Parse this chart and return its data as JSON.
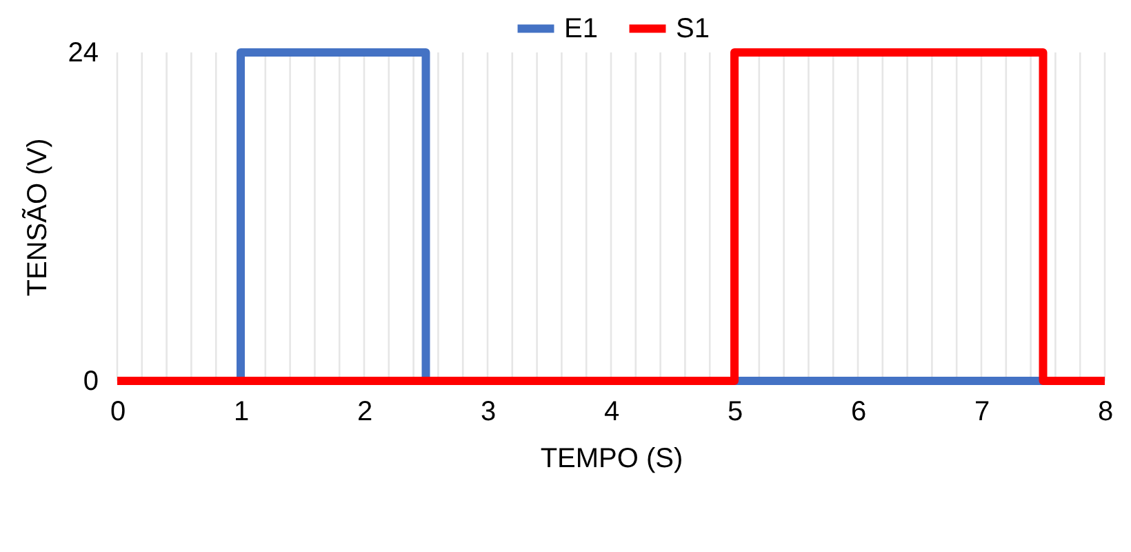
{
  "chart_data": {
    "type": "line",
    "xlabel": "TEMPO (S)",
    "ylabel": "TENSÃO (V)",
    "series": [
      {
        "name": "E1",
        "color": "#4472c4",
        "x": [
          0,
          1,
          1,
          2.5,
          2.5,
          8
        ],
        "values": [
          0,
          0,
          24,
          24,
          0,
          0
        ]
      },
      {
        "name": "S1",
        "color": "#ff0000",
        "x": [
          0,
          5,
          5,
          7.5,
          7.5,
          8
        ],
        "values": [
          0,
          0,
          24,
          24,
          0,
          0
        ]
      }
    ],
    "xlim": [
      0,
      8
    ],
    "xticks": [
      0,
      {
        "value": 0.2,
        "label": null
      },
      {
        "value": 0.4,
        "label": null
      },
      {
        "value": 0.6,
        "label": null
      },
      {
        "value": 0.8,
        "label": null
      },
      1,
      {
        "value": 1.2,
        "label": null
      },
      {
        "value": 1.4,
        "label": null
      },
      {
        "value": 1.6,
        "label": null
      },
      {
        "value": 1.8,
        "label": null
      },
      2,
      {
        "value": 2.2,
        "label": null
      },
      {
        "value": 2.4,
        "label": null
      },
      {
        "value": 2.6,
        "label": null
      },
      {
        "value": 2.8,
        "label": null
      },
      3,
      {
        "value": 3.2,
        "label": null
      },
      {
        "value": 3.4,
        "label": null
      },
      {
        "value": 3.6,
        "label": null
      },
      {
        "value": 3.8,
        "label": null
      },
      4,
      {
        "value": 4.2,
        "label": null
      },
      {
        "value": 4.4,
        "label": null
      },
      {
        "value": 4.6,
        "label": null
      },
      {
        "value": 4.8,
        "label": null
      },
      5,
      {
        "value": 5.2,
        "label": null
      },
      {
        "value": 5.4,
        "label": null
      },
      {
        "value": 5.6,
        "label": null
      },
      {
        "value": 5.8,
        "label": null
      },
      6,
      {
        "value": 6.2,
        "label": null
      },
      {
        "value": 6.4,
        "label": null
      },
      {
        "value": 6.6,
        "label": null
      },
      {
        "value": 6.8,
        "label": null
      },
      7,
      {
        "value": 7.2,
        "label": null
      },
      {
        "value": 7.4,
        "label": null
      },
      {
        "value": 7.6,
        "label": null
      },
      {
        "value": 7.8,
        "label": null
      },
      8
    ],
    "ylim": [
      0,
      24
    ],
    "yticks": [
      0,
      24
    ],
    "grid": "x",
    "legend": "top",
    "marker": "none",
    "line_style": "solid"
  }
}
